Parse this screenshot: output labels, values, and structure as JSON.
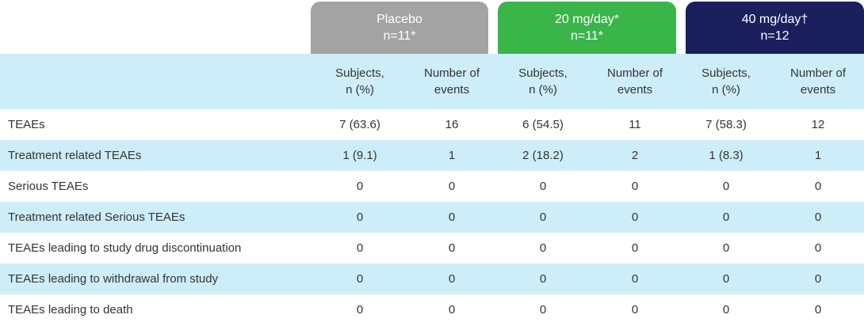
{
  "groups": [
    {
      "name": "Placebo",
      "n": "n=11*"
    },
    {
      "name": "20 mg/day*",
      "n": "n=11*"
    },
    {
      "name": "40 mg/day†",
      "n": "n=12"
    }
  ],
  "subheaders": [
    "Subjects,\nn (%)",
    "Number of\nevents",
    "Subjects,\nn (%)",
    "Number of\nevents",
    "Subjects,\nn (%)",
    "Number of\nevents"
  ],
  "rows": [
    {
      "label": "TEAEs",
      "values": [
        "7 (63.6)",
        "16",
        "6 (54.5)",
        "11",
        "7 (58.3)",
        "12"
      ]
    },
    {
      "label": "Treatment related TEAEs",
      "values": [
        "1 (9.1)",
        "1",
        "2 (18.2)",
        "2",
        "1 (8.3)",
        "1"
      ]
    },
    {
      "label": "Serious TEAEs",
      "values": [
        "0",
        "0",
        "0",
        "0",
        "0",
        "0"
      ]
    },
    {
      "label": "Treatment related Serious TEAEs",
      "values": [
        "0",
        "0",
        "0",
        "0",
        "0",
        "0"
      ]
    },
    {
      "label": "TEAEs leading to study drug discontinuation",
      "values": [
        "0",
        "0",
        "0",
        "0",
        "0",
        "0"
      ]
    },
    {
      "label": "TEAEs leading to withdrawal from study",
      "values": [
        "0",
        "0",
        "0",
        "0",
        "0",
        "0"
      ]
    },
    {
      "label": "TEAEs leading to death",
      "values": [
        "0",
        "0",
        "0",
        "0",
        "0",
        "0"
      ]
    }
  ],
  "colors": {
    "placebo": "#a3a3a3",
    "dose_20": "#39b54a",
    "dose_40": "#1b1f5e",
    "row_shade": "#cdeef8",
    "text": "#333333"
  }
}
